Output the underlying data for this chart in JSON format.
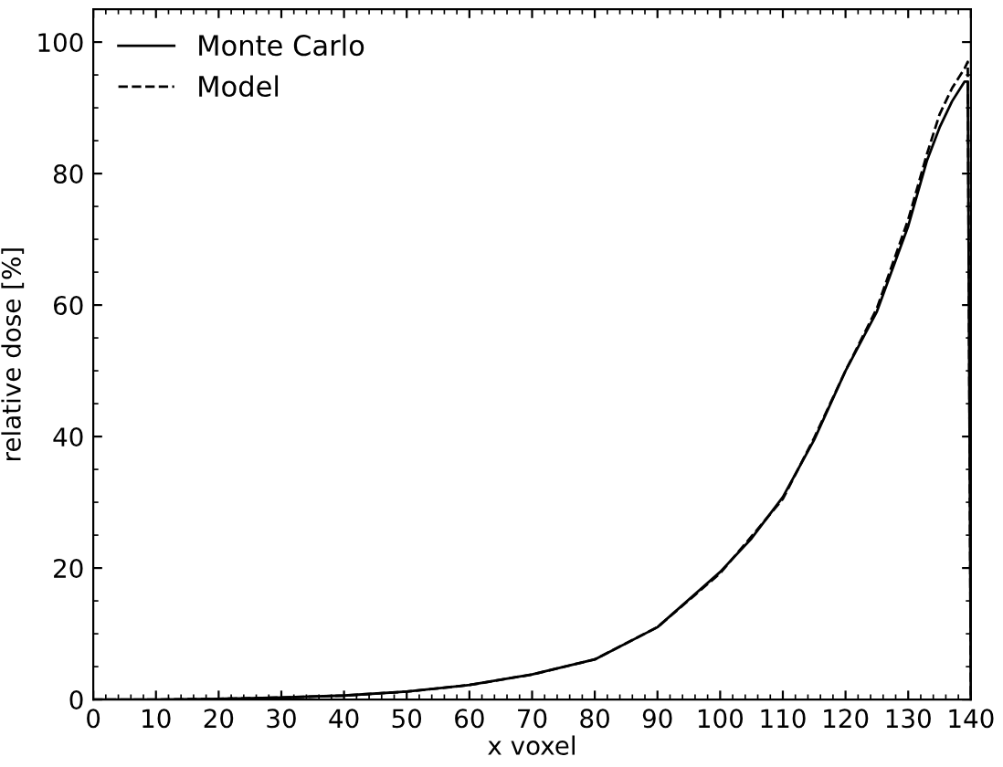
{
  "chart_data": {
    "type": "line",
    "xlabel": "x voxel",
    "ylabel": "relative dose [%]",
    "xlim": [
      0,
      140
    ],
    "ylim": [
      0,
      105
    ],
    "xticks": [
      0,
      10,
      20,
      30,
      40,
      50,
      60,
      70,
      80,
      90,
      100,
      110,
      120,
      130,
      140
    ],
    "yticks": [
      0,
      20,
      40,
      60,
      80,
      100
    ],
    "legend": "top left",
    "grid": false,
    "series": [
      {
        "name": "Monte Carlo",
        "color": "#000000",
        "line_style": "solid",
        "x": [
          0,
          10,
          20,
          30,
          40,
          50,
          60,
          70,
          80,
          90,
          100,
          105,
          110,
          115,
          120,
          125,
          130,
          133,
          135,
          137,
          139,
          139.5,
          140
        ],
        "values": [
          0,
          0,
          0.1,
          0.3,
          0.6,
          1.2,
          2.2,
          3.8,
          6.1,
          11,
          19.4,
          24.5,
          30.8,
          39.5,
          50,
          59,
          72,
          82,
          87,
          91,
          94,
          94,
          0
        ]
      },
      {
        "name": "Model",
        "color": "#000000",
        "line_style": "dashed",
        "x": [
          0,
          10,
          20,
          30,
          40,
          50,
          60,
          70,
          80,
          90,
          100,
          105,
          110,
          115,
          120,
          125,
          130,
          133,
          135,
          137,
          139,
          139.5,
          140
        ],
        "values": [
          0,
          0,
          0.1,
          0.3,
          0.6,
          1.2,
          2.2,
          3.8,
          6.1,
          11,
          19.2,
          24.8,
          30.5,
          39.8,
          50,
          59.5,
          73,
          83,
          89,
          93,
          96,
          97,
          0
        ]
      }
    ]
  }
}
